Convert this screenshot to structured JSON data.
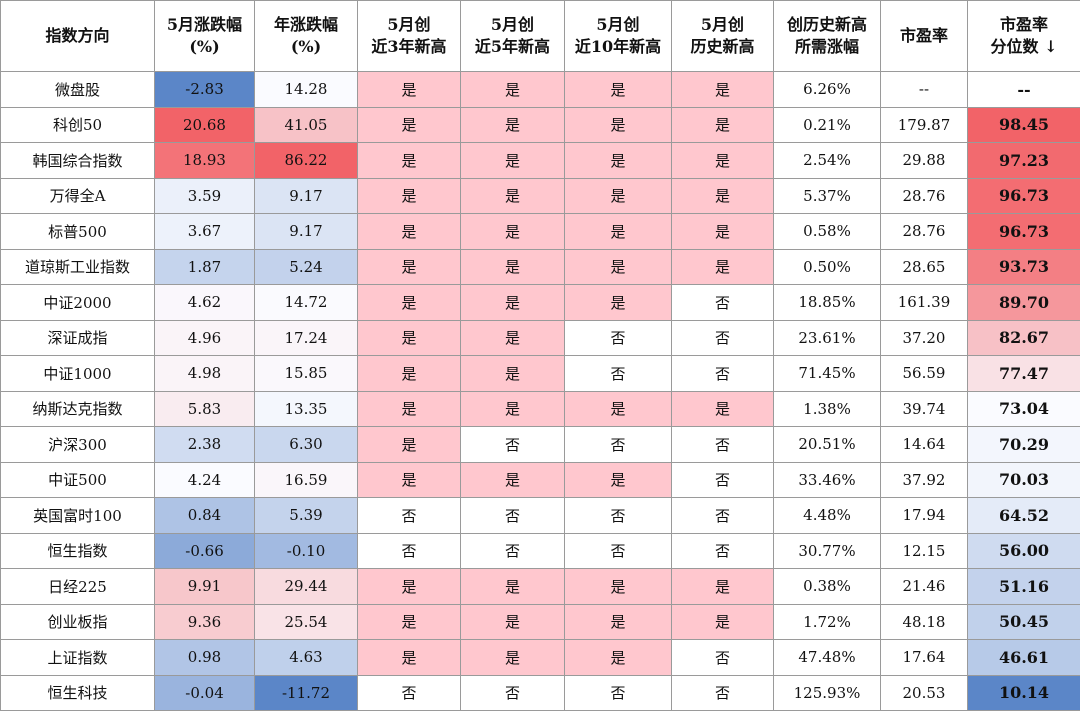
{
  "headers": [
    [
      "指数方向"
    ],
    [
      "5月涨跌幅",
      "(%)"
    ],
    [
      "年涨跌幅",
      "(%)"
    ],
    [
      "5月创",
      "近3年新高"
    ],
    [
      "5月创",
      "近5年新高"
    ],
    [
      "5月创",
      "近10年新高"
    ],
    [
      "5月创",
      "历史新高"
    ],
    [
      "创历史新高",
      "所需涨幅"
    ],
    [
      "市盈率"
    ],
    [
      "市盈率",
      "分位数 ↓"
    ]
  ],
  "yes_label": "是",
  "no_label": "否",
  "colors": {
    "yes_fill": "#ffc7ce",
    "no_fill": "#ffffff",
    "neutral": "#fafbff",
    "negative": "#5b86c8",
    "positive": "#f26368"
  },
  "chart_data": {
    "type": "table",
    "columns": [
      "指数方向",
      "5月涨跌幅(%)",
      "年涨跌幅(%)",
      "5月创近3年新高",
      "5月创近5年新高",
      "5月创近10年新高",
      "5月创历史新高",
      "创历史新高所需涨幅",
      "市盈率",
      "市盈率分位数"
    ],
    "rows": [
      {
        "name": "微盘股",
        "may": "-2.83",
        "year": "14.28",
        "h3": "是",
        "h5": "是",
        "h10": "是",
        "hall": "是",
        "need": "6.26%",
        "pe": "--",
        "pct": "--"
      },
      {
        "name": "科创50",
        "may": "20.68",
        "year": "41.05",
        "h3": "是",
        "h5": "是",
        "h10": "是",
        "hall": "是",
        "need": "0.21%",
        "pe": "179.87",
        "pct": "98.45"
      },
      {
        "name": "韩国综合指数",
        "may": "18.93",
        "year": "86.22",
        "h3": "是",
        "h5": "是",
        "h10": "是",
        "hall": "是",
        "need": "2.54%",
        "pe": "29.88",
        "pct": "97.23"
      },
      {
        "name": "万得全A",
        "may": "3.59",
        "year": "9.17",
        "h3": "是",
        "h5": "是",
        "h10": "是",
        "hall": "是",
        "need": "5.37%",
        "pe": "28.76",
        "pct": "96.73"
      },
      {
        "name": "标普500",
        "may": "3.67",
        "year": "9.17",
        "h3": "是",
        "h5": "是",
        "h10": "是",
        "hall": "是",
        "need": "0.58%",
        "pe": "28.76",
        "pct": "96.73"
      },
      {
        "name": "道琼斯工业指数",
        "may": "1.87",
        "year": "5.24",
        "h3": "是",
        "h5": "是",
        "h10": "是",
        "hall": "是",
        "need": "0.50%",
        "pe": "28.65",
        "pct": "93.73"
      },
      {
        "name": "中证2000",
        "may": "4.62",
        "year": "14.72",
        "h3": "是",
        "h5": "是",
        "h10": "是",
        "hall": "否",
        "need": "18.85%",
        "pe": "161.39",
        "pct": "89.70"
      },
      {
        "name": "深证成指",
        "may": "4.96",
        "year": "17.24",
        "h3": "是",
        "h5": "是",
        "h10": "否",
        "hall": "否",
        "need": "23.61%",
        "pe": "37.20",
        "pct": "82.67"
      },
      {
        "name": "中证1000",
        "may": "4.98",
        "year": "15.85",
        "h3": "是",
        "h5": "是",
        "h10": "否",
        "hall": "否",
        "need": "71.45%",
        "pe": "56.59",
        "pct": "77.47"
      },
      {
        "name": "纳斯达克指数",
        "may": "5.83",
        "year": "13.35",
        "h3": "是",
        "h5": "是",
        "h10": "是",
        "hall": "是",
        "need": "1.38%",
        "pe": "39.74",
        "pct": "73.04"
      },
      {
        "name": "沪深300",
        "may": "2.38",
        "year": "6.30",
        "h3": "是",
        "h5": "否",
        "h10": "否",
        "hall": "否",
        "need": "20.51%",
        "pe": "14.64",
        "pct": "70.29"
      },
      {
        "name": "中证500",
        "may": "4.24",
        "year": "16.59",
        "h3": "是",
        "h5": "是",
        "h10": "是",
        "hall": "否",
        "need": "33.46%",
        "pe": "37.92",
        "pct": "70.03"
      },
      {
        "name": "英国富时100",
        "may": "0.84",
        "year": "5.39",
        "h3": "否",
        "h5": "否",
        "h10": "否",
        "hall": "否",
        "need": "4.48%",
        "pe": "17.94",
        "pct": "64.52"
      },
      {
        "name": "恒生指数",
        "may": "-0.66",
        "year": "-0.10",
        "h3": "否",
        "h5": "否",
        "h10": "否",
        "hall": "否",
        "need": "30.77%",
        "pe": "12.15",
        "pct": "56.00"
      },
      {
        "name": "日经225",
        "may": "9.91",
        "year": "29.44",
        "h3": "是",
        "h5": "是",
        "h10": "是",
        "hall": "是",
        "need": "0.38%",
        "pe": "21.46",
        "pct": "51.16"
      },
      {
        "name": "创业板指",
        "may": "9.36",
        "year": "25.54",
        "h3": "是",
        "h5": "是",
        "h10": "是",
        "hall": "是",
        "need": "1.72%",
        "pe": "48.18",
        "pct": "50.45"
      },
      {
        "name": "上证指数",
        "may": "0.98",
        "year": "4.63",
        "h3": "是",
        "h5": "是",
        "h10": "是",
        "hall": "否",
        "need": "47.48%",
        "pe": "17.64",
        "pct": "46.61"
      },
      {
        "name": "恒生科技",
        "may": "-0.04",
        "year": "-11.72",
        "h3": "否",
        "h5": "否",
        "h10": "否",
        "hall": "否",
        "need": "125.93%",
        "pe": "20.53",
        "pct": "10.14"
      }
    ]
  }
}
